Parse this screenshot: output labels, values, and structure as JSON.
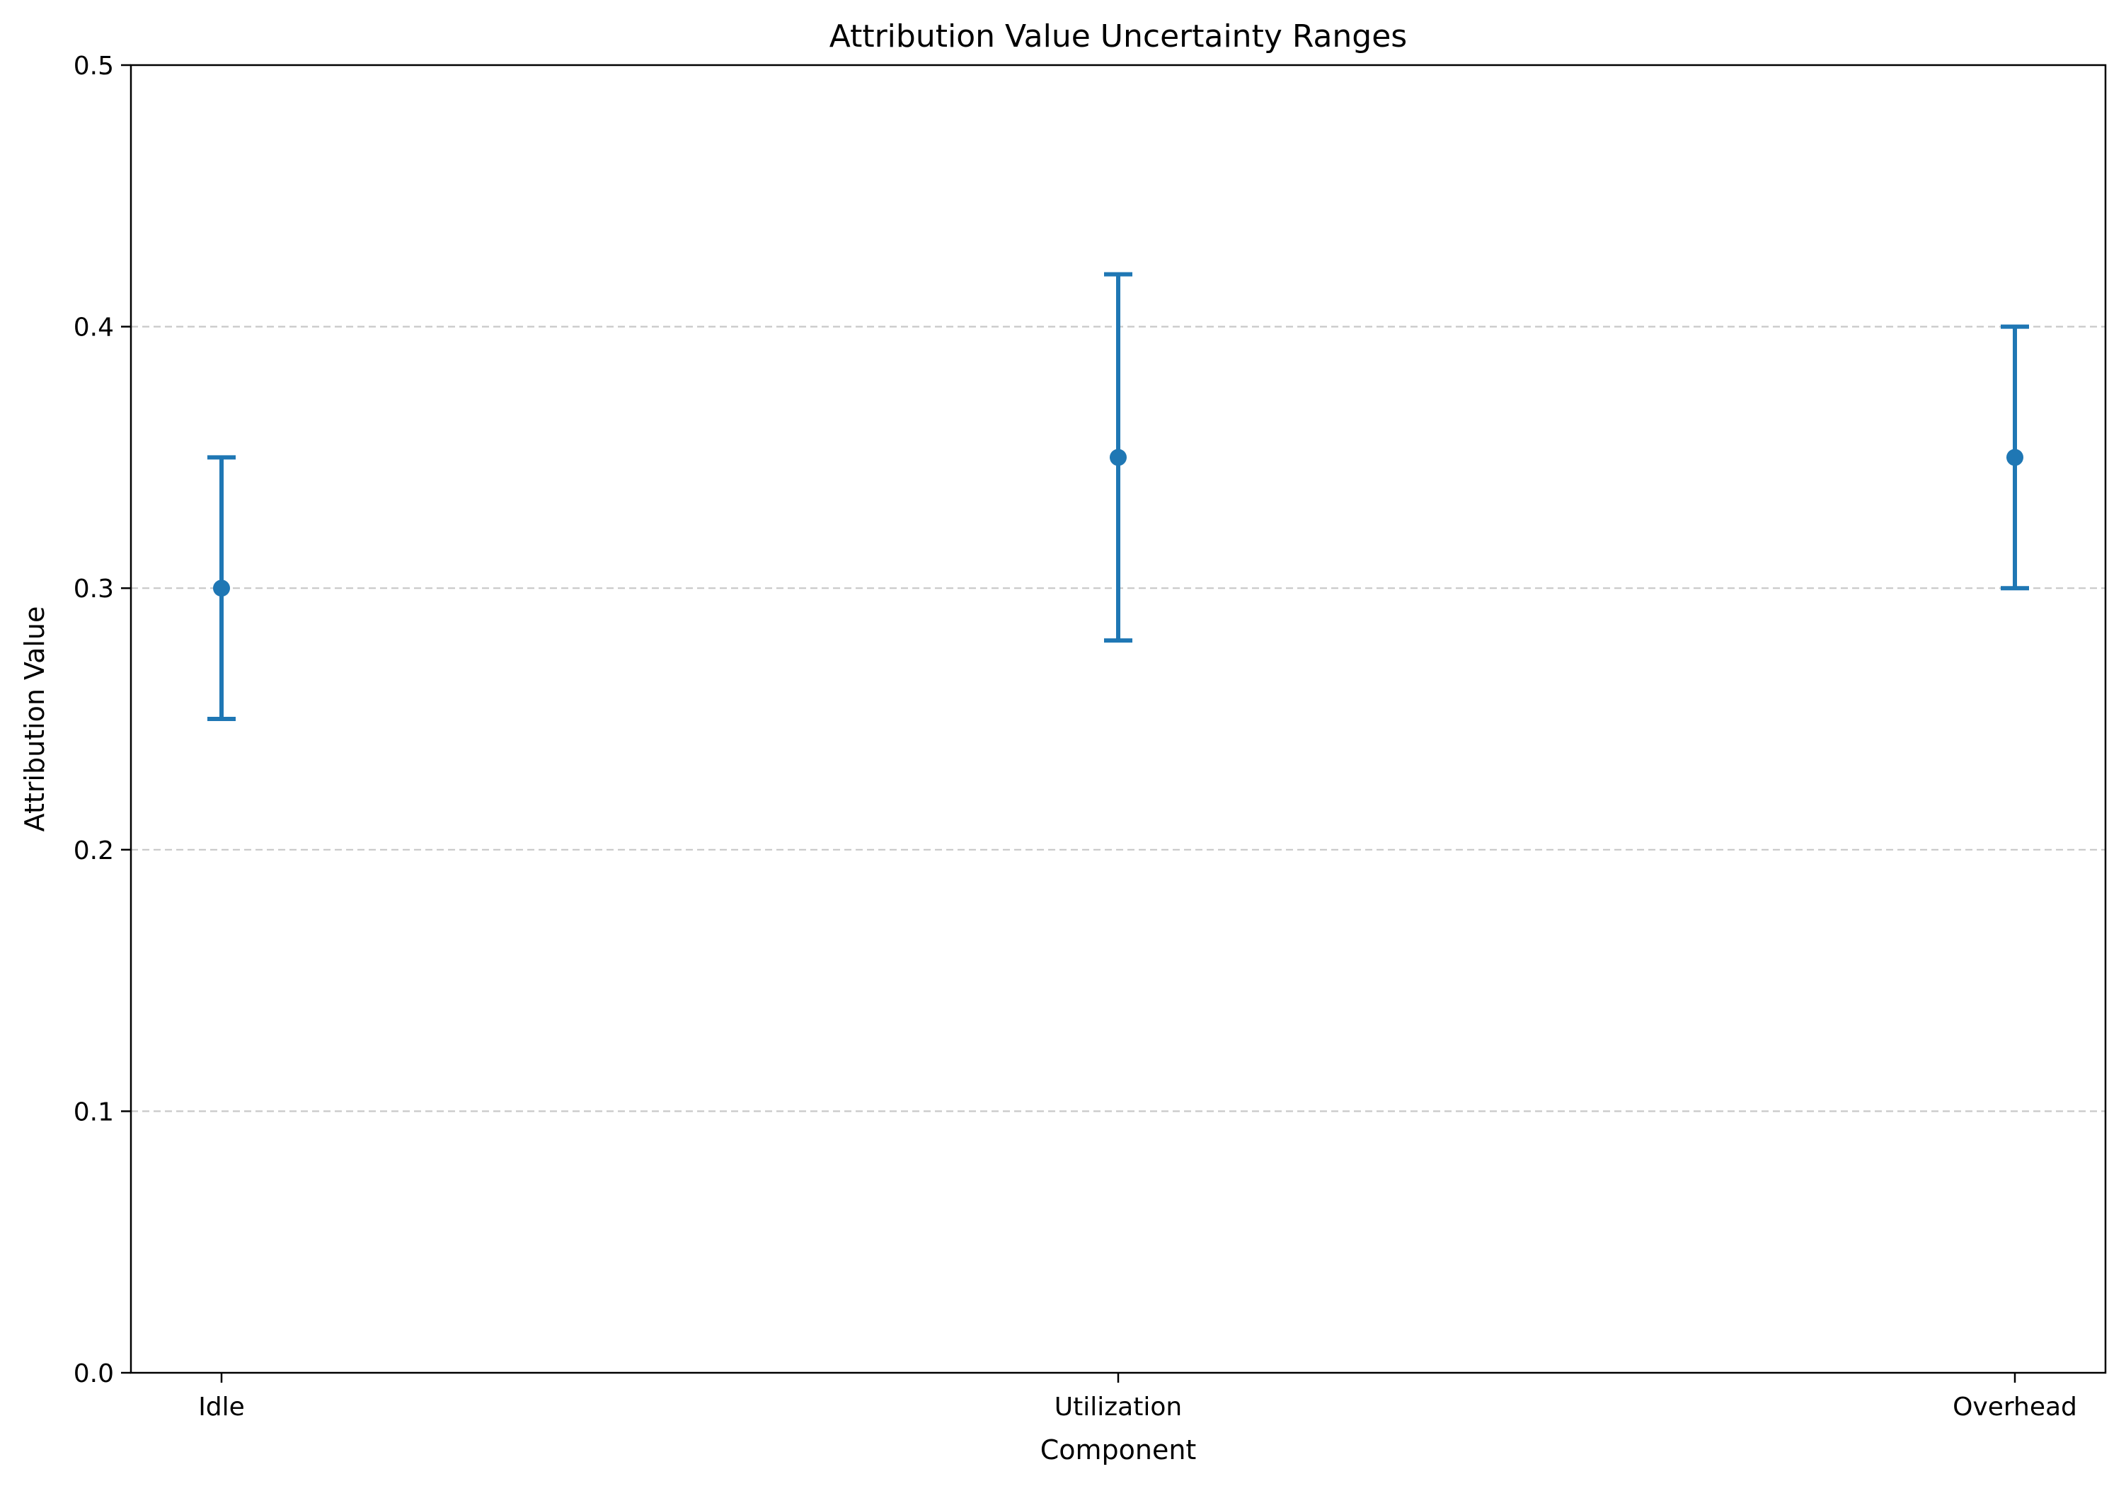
{
  "chart_data": {
    "type": "scatter",
    "title": "Attribution Value Uncertainty Ranges",
    "xlabel": "Component",
    "ylabel": "Attribution Value",
    "categories": [
      "Idle",
      "Utilization",
      "Overhead"
    ],
    "series": [
      {
        "values": [
          0.3,
          0.35,
          0.35
        ],
        "lower": [
          0.25,
          0.28,
          0.3
        ],
        "upper": [
          0.35,
          0.42,
          0.4
        ]
      }
    ],
    "ylim": [
      0.0,
      0.5
    ],
    "yticks": [
      "0.0",
      "0.1",
      "0.2",
      "0.3",
      "0.4",
      "0.5"
    ],
    "grid": "y-dashed",
    "legend": "none",
    "colors": {
      "series": "#1f77b4",
      "grid": "#c8c8c8",
      "axes": "#000000"
    }
  }
}
